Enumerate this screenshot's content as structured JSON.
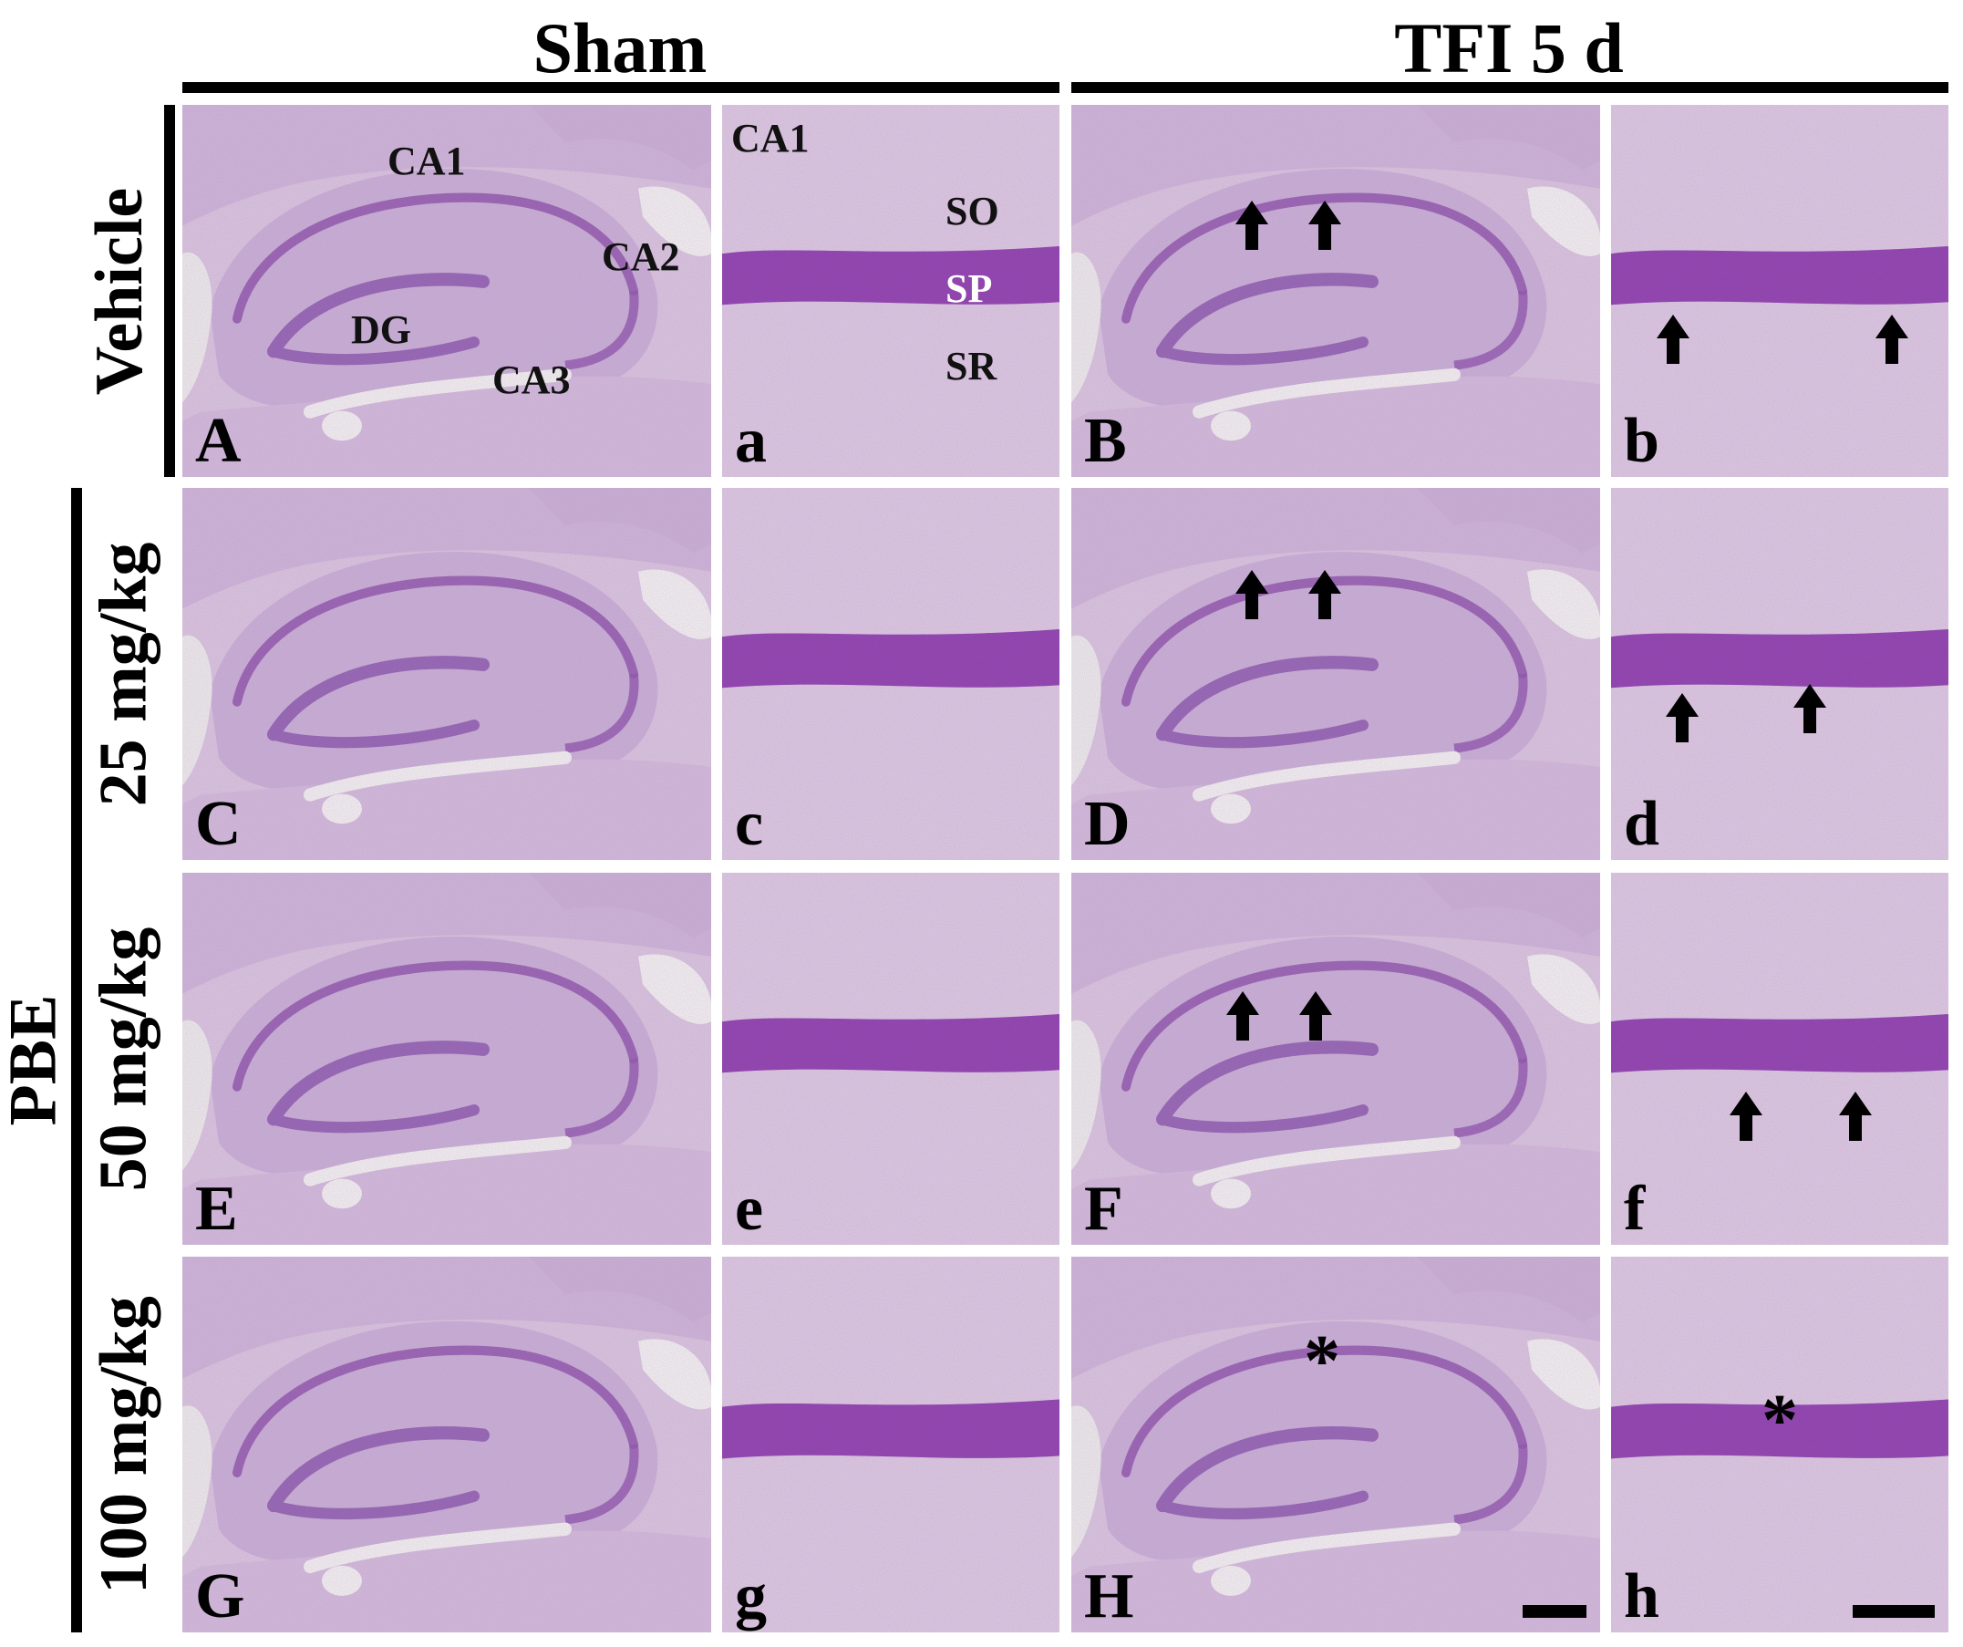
{
  "columns": {
    "sham": "Sham",
    "tfi": "TFI 5 d"
  },
  "rows": {
    "vehicle": "Vehicle",
    "pbe": "PBE",
    "dose25": "25 mg/kg",
    "dose50": "50 mg/kg",
    "dose100": "100 mg/kg"
  },
  "panels": {
    "A": "A",
    "a": "a",
    "B": "B",
    "b": "b",
    "C": "C",
    "c": "c",
    "D": "D",
    "d": "d",
    "E": "E",
    "e": "e",
    "F": "F",
    "f": "f",
    "G": "G",
    "g": "g",
    "H": "H",
    "h": "h"
  },
  "regions": {
    "ca1": "CA1",
    "ca2": "CA2",
    "ca3": "CA3",
    "dg": "DG",
    "ca1_zoom": "CA1",
    "so": "SO",
    "sp": "SP",
    "sr": "SR"
  },
  "marks": {
    "asterisk": "*"
  },
  "colors": {
    "tissue": "#d9c7dd",
    "tissue_dark": "#b89bc6",
    "cell_layer": "#8a4fa6",
    "cell_layer_dense": "#7b2f9a",
    "background_light": "#eef0ea"
  }
}
